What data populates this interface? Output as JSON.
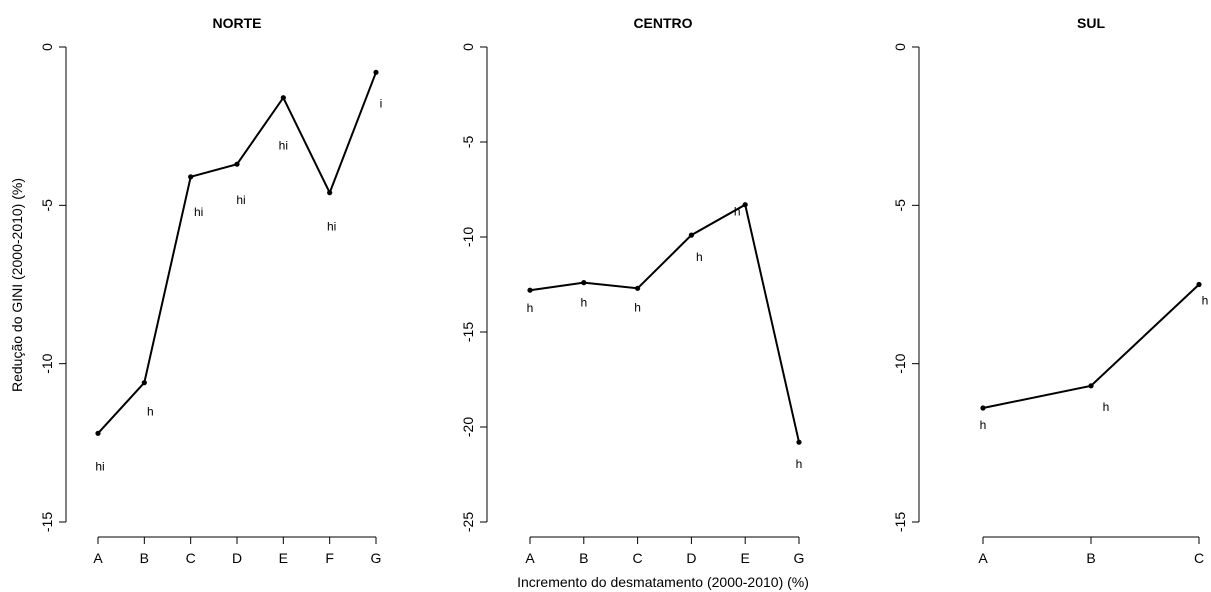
{
  "figure": {
    "ylabel": "Redução do GINI (2000-2010) (%)",
    "xlabel": "Incremento do desmatamento (2000-2010) (%)"
  },
  "chart_data": [
    {
      "type": "line",
      "title": "NORTE",
      "categories": [
        "A",
        "B",
        "C",
        "D",
        "E",
        "F",
        "G"
      ],
      "values": [
        -12.2,
        -10.6,
        -4.1,
        -3.7,
        -1.6,
        -4.6,
        -0.8
      ],
      "group_labels": [
        "hi",
        "h",
        "hi",
        "hi",
        "hi",
        "hi",
        "i"
      ],
      "ylim": [
        -15,
        0
      ],
      "yticks": [
        0,
        -5,
        -10,
        -15
      ],
      "yticklabels": [
        "0",
        "-5",
        "-10",
        "-15"
      ]
    },
    {
      "type": "line",
      "title": "CENTRO",
      "categories": [
        "A",
        "B",
        "C",
        "D",
        "E",
        "G"
      ],
      "values": [
        -12.8,
        -12.4,
        -12.7,
        -9.9,
        -8.3,
        -20.8
      ],
      "group_labels": [
        "h",
        "h",
        "h",
        "h",
        "h",
        "h"
      ],
      "ylim": [
        -25,
        0
      ],
      "yticks": [
        0,
        -5,
        -10,
        -15,
        -20,
        -25
      ],
      "yticklabels": [
        "0",
        "-5",
        "-10",
        "-15",
        "-20",
        "-25"
      ]
    },
    {
      "type": "line",
      "title": "SUL",
      "categories": [
        "A",
        "B",
        "C"
      ],
      "values": [
        -11.4,
        -10.7,
        -7.5
      ],
      "group_labels": [
        "h",
        "h",
        "h"
      ],
      "ylim": [
        -15,
        0
      ],
      "yticks": [
        0,
        -5,
        -10,
        -15
      ],
      "yticklabels": [
        "0",
        "-5",
        "-10",
        "-15"
      ]
    }
  ]
}
